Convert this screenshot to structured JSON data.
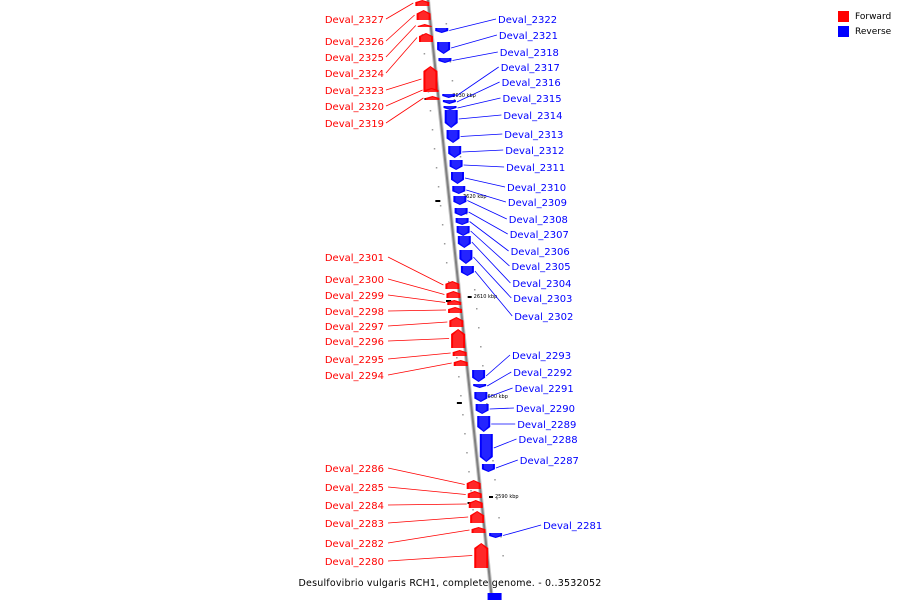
{
  "caption": "Desulfovibrio vulgaris RCH1, complete genome. - 0..3532052",
  "legend": [
    {
      "label": "Forward",
      "color": "#ff0000"
    },
    {
      "label": "Reverse",
      "color": "#0000ff"
    }
  ],
  "colors": {
    "forward": "#ff0000",
    "reverse": "#0000ff",
    "backbone": "#808080"
  },
  "ticks": [
    "2630 kbp",
    "2620 kbp",
    "2610 kbp",
    "2600 kbp",
    "2590 kbp"
  ],
  "forward_genes": [
    "Deval_2327",
    "Deval_2326",
    "Deval_2325",
    "Deval_2324",
    "Deval_2323",
    "Deval_2320",
    "Deval_2319",
    "Deval_2301",
    "Deval_2300",
    "Deval_2299",
    "Deval_2298",
    "Deval_2297",
    "Deval_2296",
    "Deval_2295",
    "Deval_2294",
    "Deval_2286",
    "Deval_2285",
    "Deval_2284",
    "Deval_2283",
    "Deval_2282",
    "Deval_2280"
  ],
  "reverse_genes": [
    "Deval_2322",
    "Deval_2321",
    "Deval_2318",
    "Deval_2317",
    "Deval_2316",
    "Deval_2315",
    "Deval_2314",
    "Deval_2313",
    "Deval_2312",
    "Deval_2311",
    "Deval_2310",
    "Deval_2309",
    "Deval_2308",
    "Deval_2307",
    "Deval_2306",
    "Deval_2305",
    "Deval_2304",
    "Deval_2303",
    "Deval_2302",
    "Deval_2293",
    "Deval_2292",
    "Deval_2291",
    "Deval_2290",
    "Deval_2289",
    "Deval_2288",
    "Deval_2287",
    "Deval_2281"
  ]
}
